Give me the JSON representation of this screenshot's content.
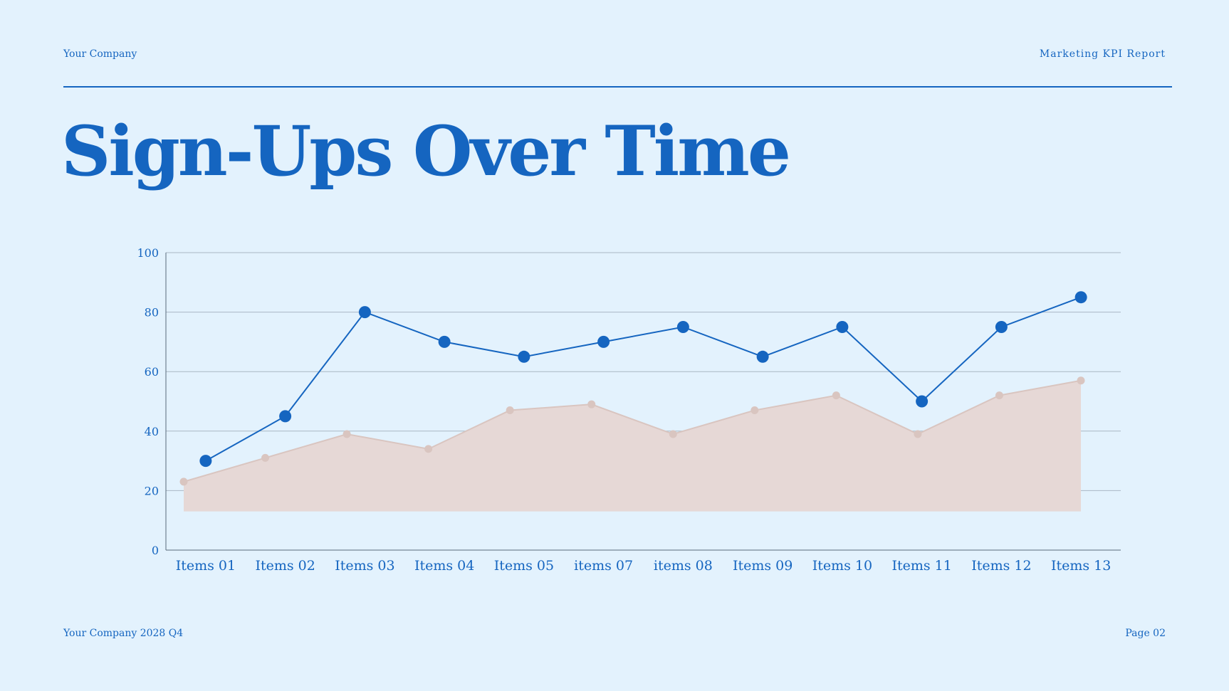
{
  "header": {
    "company": "Your Company",
    "report": "Marketing KPI Report"
  },
  "title": "Sign-Ups Over Time",
  "footer": {
    "left": "Your Company 2028 Q4",
    "right": "Page 02"
  },
  "colors": {
    "primary": "#1565C0",
    "area_fill": "#E6D8D6",
    "area_line": "#D9C5C0",
    "background": "#E3F2FD",
    "grid": "#A9B7C4"
  },
  "chart_data": {
    "type": "line",
    "categories": [
      "Items 01",
      "Items 02",
      "Items 03",
      "Items 04",
      "Items 05",
      "items 07",
      "items 08",
      "Items 09",
      "Items 10",
      "Items 11",
      "Items 12",
      "Items 13"
    ],
    "ylim": [
      0,
      100
    ],
    "yticks": [
      0,
      20,
      40,
      60,
      80,
      100
    ],
    "grid": true,
    "series": [
      {
        "kind": "line",
        "values": [
          30,
          45,
          80,
          70,
          65,
          70,
          75,
          65,
          75,
          50,
          75,
          85
        ]
      },
      {
        "kind": "area",
        "values": [
          23,
          31,
          39,
          34,
          47,
          49,
          39,
          47,
          52,
          39,
          52,
          57
        ],
        "baseline": 13
      }
    ]
  }
}
